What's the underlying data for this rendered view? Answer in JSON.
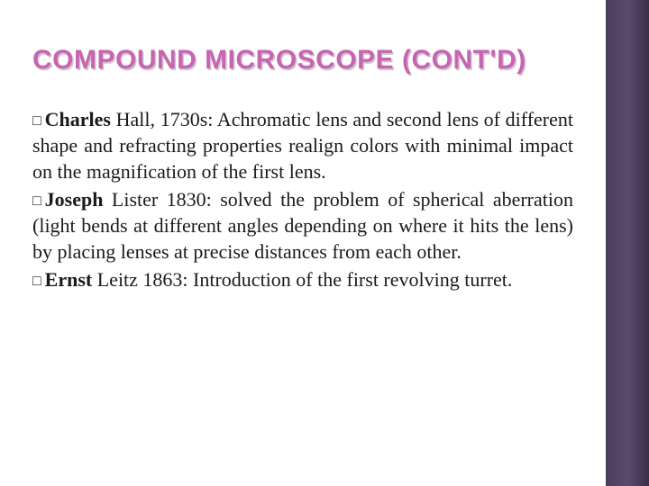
{
  "title": "COMPOUND MICROSCOPE (CONT'D)",
  "accent_color": "#c765b1",
  "sidebar_color": "#4a3d5c",
  "bullets": [
    {
      "lead": "Charles",
      "rest": " Hall, 1730s: Achromatic lens and second lens of different shape and refracting properties realign colors with minimal impact on the magnification of the first lens."
    },
    {
      "lead": "Joseph",
      "rest": " Lister 1830: solved the problem of spherical aberration (light bends at different angles depending on where it hits the lens) by placing lenses at precise distances from each other."
    },
    {
      "lead": "Ernst",
      "rest": " Leitz 1863: Introduction of the first revolving turret."
    }
  ]
}
